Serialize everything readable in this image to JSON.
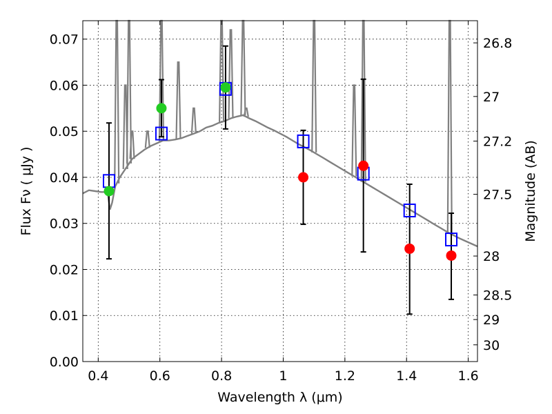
{
  "chart_data": {
    "type": "scatter",
    "xlabel": "Wavelength  λ (μm)",
    "ylabel": "Flux  Fν  ( μJy )",
    "y2label": "Magnitude (AB)",
    "xlim": [
      0.35,
      1.63
    ],
    "ylim": [
      0.0,
      0.074
    ],
    "grid": true,
    "x_ticks": [
      0.4,
      0.6,
      0.8,
      1.0,
      1.2,
      1.4,
      1.6
    ],
    "x_tick_labels": [
      "0.4",
      "0.6",
      "0.8",
      "1",
      "1.2",
      "1.4",
      "1.6"
    ],
    "y_ticks": [
      0.0,
      0.01,
      0.02,
      0.03,
      0.04,
      0.05,
      0.06,
      0.07
    ],
    "y_tick_labels": [
      "0.00",
      "0.01",
      "0.02",
      "0.03",
      "0.04",
      "0.05",
      "0.06",
      "0.07"
    ],
    "magnitude_axis": {
      "ticks": [
        26.8,
        27,
        27.2,
        27.5,
        28,
        28.5,
        29,
        30
      ],
      "tick_labels": [
        "26.8",
        "27",
        "27.2",
        "27.5",
        "28",
        "28.5",
        "29",
        "30"
      ]
    },
    "model_sed": {
      "color": "#808080",
      "points": [
        [
          0.35,
          0.0365
        ],
        [
          0.37,
          0.0372
        ],
        [
          0.39,
          0.037
        ],
        [
          0.41,
          0.0368
        ],
        [
          0.425,
          0.0368
        ],
        [
          0.432,
          0.036
        ],
        [
          0.438,
          0.033
        ],
        [
          0.445,
          0.0345
        ],
        [
          0.455,
          0.038
        ],
        [
          0.47,
          0.04
        ],
        [
          0.49,
          0.042
        ],
        [
          0.51,
          0.044
        ],
        [
          0.53,
          0.045
        ],
        [
          0.55,
          0.046
        ],
        [
          0.57,
          0.0468
        ],
        [
          0.59,
          0.0474
        ],
        [
          0.61,
          0.048
        ],
        [
          0.63,
          0.048
        ],
        [
          0.65,
          0.0482
        ],
        [
          0.67,
          0.0485
        ],
        [
          0.69,
          0.049
        ],
        [
          0.71,
          0.0495
        ],
        [
          0.73,
          0.05
        ],
        [
          0.75,
          0.0508
        ],
        [
          0.77,
          0.0512
        ],
        [
          0.79,
          0.0518
        ],
        [
          0.81,
          0.0522
        ],
        [
          0.83,
          0.0528
        ],
        [
          0.85,
          0.0532
        ],
        [
          0.87,
          0.0535
        ],
        [
          0.89,
          0.0528
        ],
        [
          0.91,
          0.0522
        ],
        [
          0.93,
          0.0515
        ],
        [
          0.95,
          0.0508
        ],
        [
          0.97,
          0.0502
        ],
        [
          0.99,
          0.0495
        ],
        [
          1.01,
          0.0488
        ],
        [
          1.03,
          0.048
        ],
        [
          1.05,
          0.0472
        ],
        [
          1.07,
          0.0465
        ],
        [
          1.09,
          0.0458
        ],
        [
          1.11,
          0.045
        ],
        [
          1.13,
          0.0442
        ],
        [
          1.15,
          0.0434
        ],
        [
          1.17,
          0.0426
        ],
        [
          1.19,
          0.0418
        ],
        [
          1.21,
          0.041
        ],
        [
          1.23,
          0.0402
        ],
        [
          1.25,
          0.0394
        ],
        [
          1.27,
          0.0386
        ],
        [
          1.29,
          0.0378
        ],
        [
          1.31,
          0.037
        ],
        [
          1.33,
          0.0362
        ],
        [
          1.35,
          0.0354
        ],
        [
          1.37,
          0.0346
        ],
        [
          1.39,
          0.0338
        ],
        [
          1.41,
          0.033
        ],
        [
          1.43,
          0.0322
        ],
        [
          1.45,
          0.0314
        ],
        [
          1.47,
          0.0306
        ],
        [
          1.49,
          0.0298
        ],
        [
          1.51,
          0.029
        ],
        [
          1.53,
          0.0282
        ],
        [
          1.55,
          0.0275
        ],
        [
          1.57,
          0.0268
        ],
        [
          1.59,
          0.0262
        ],
        [
          1.61,
          0.0256
        ],
        [
          1.63,
          0.025
        ]
      ],
      "emission_lines": [
        [
          0.46,
          0.074
        ],
        [
          0.488,
          0.06
        ],
        [
          0.5,
          0.074
        ],
        [
          0.51,
          0.05
        ],
        [
          0.56,
          0.05
        ],
        [
          0.605,
          0.074
        ],
        [
          0.66,
          0.065
        ],
        [
          0.71,
          0.055
        ],
        [
          0.8,
          0.074
        ],
        [
          0.83,
          0.072
        ],
        [
          0.87,
          0.074
        ],
        [
          0.88,
          0.055
        ],
        [
          1.1,
          0.074
        ],
        [
          1.23,
          0.06
        ],
        [
          1.26,
          0.074
        ],
        [
          1.54,
          0.074
        ]
      ]
    },
    "series": [
      {
        "name": "",
        "marker": "square",
        "color": "#0000ff",
        "points": [
          [
            0.435,
            0.0392
          ],
          [
            0.605,
            0.0495
          ],
          [
            0.813,
            0.0592
          ],
          [
            1.065,
            0.0478
          ],
          [
            1.26,
            0.0408
          ],
          [
            1.41,
            0.0328
          ],
          [
            1.545,
            0.0265
          ]
        ]
      },
      {
        "name": "",
        "marker": "circle",
        "color": "#22cc22",
        "points": [
          [
            0.435,
            0.037
          ],
          [
            0.605,
            0.055
          ],
          [
            0.813,
            0.0595
          ]
        ]
      },
      {
        "name": "",
        "marker": "circle",
        "color": "#ff0000",
        "points": [
          [
            1.065,
            0.04
          ],
          [
            1.26,
            0.0425
          ],
          [
            1.41,
            0.0245
          ],
          [
            1.545,
            0.023
          ]
        ]
      }
    ],
    "error_bars": [
      {
        "x": 0.435,
        "low": 0.0223,
        "high": 0.0518
      },
      {
        "x": 0.605,
        "low": 0.0488,
        "high": 0.0612
      },
      {
        "x": 0.813,
        "low": 0.0505,
        "high": 0.0685
      },
      {
        "x": 1.065,
        "low": 0.0298,
        "high": 0.0502
      },
      {
        "x": 1.26,
        "low": 0.0238,
        "high": 0.0613
      },
      {
        "x": 1.41,
        "low": 0.0103,
        "high": 0.0385
      },
      {
        "x": 1.545,
        "low": 0.0135,
        "high": 0.0322
      }
    ]
  }
}
